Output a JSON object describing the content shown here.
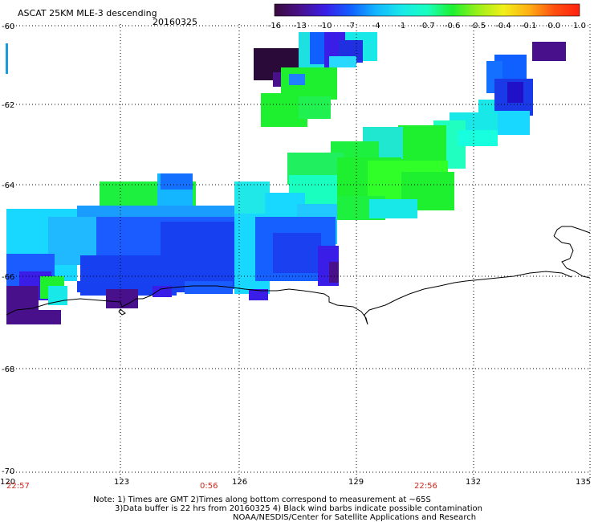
{
  "header": {
    "title": "ASCAT 25KM MLE-3 descending",
    "date": "20160325"
  },
  "colorbar": {
    "labels": [
      "-16",
      "-13",
      "-10",
      "-7",
      "-4",
      "-1",
      "-0.7",
      "-0.6",
      "-0.5",
      "-0.4",
      "-0.1",
      "0.0",
      "1.0"
    ],
    "colors": [
      "#3a0a3c",
      "#48108a",
      "#3a1ee8",
      "#1060ff",
      "#14b6ff",
      "#18e8e8",
      "#18ffc0",
      "#1ef030",
      "#9af018",
      "#f0f018",
      "#ffb014",
      "#ff5010",
      "#ff2010"
    ]
  },
  "axes": {
    "lon_labels": [
      "120",
      "123",
      "126",
      "129",
      "132",
      "135"
    ],
    "lat_labels": [
      "-60",
      "-62",
      "-64",
      "-66",
      "-68",
      "-70"
    ]
  },
  "times": [
    "22:57",
    "0:56",
    "22:56"
  ],
  "notes": {
    "line1": "Note: 1) Times are GMT 2)Times along bottom correspond to measurement at ~65S",
    "line2": "3)Data buffer is 22 hrs from 20160325 4) Black wind barbs indicate possible contamination",
    "line3": "NOAA/NESDIS/Center for Satellite Applications and Research"
  },
  "colors": {
    "marker": "#1a9ae0",
    "coast": "#000000",
    "grid": "#000000",
    "time": "#d0281c"
  }
}
